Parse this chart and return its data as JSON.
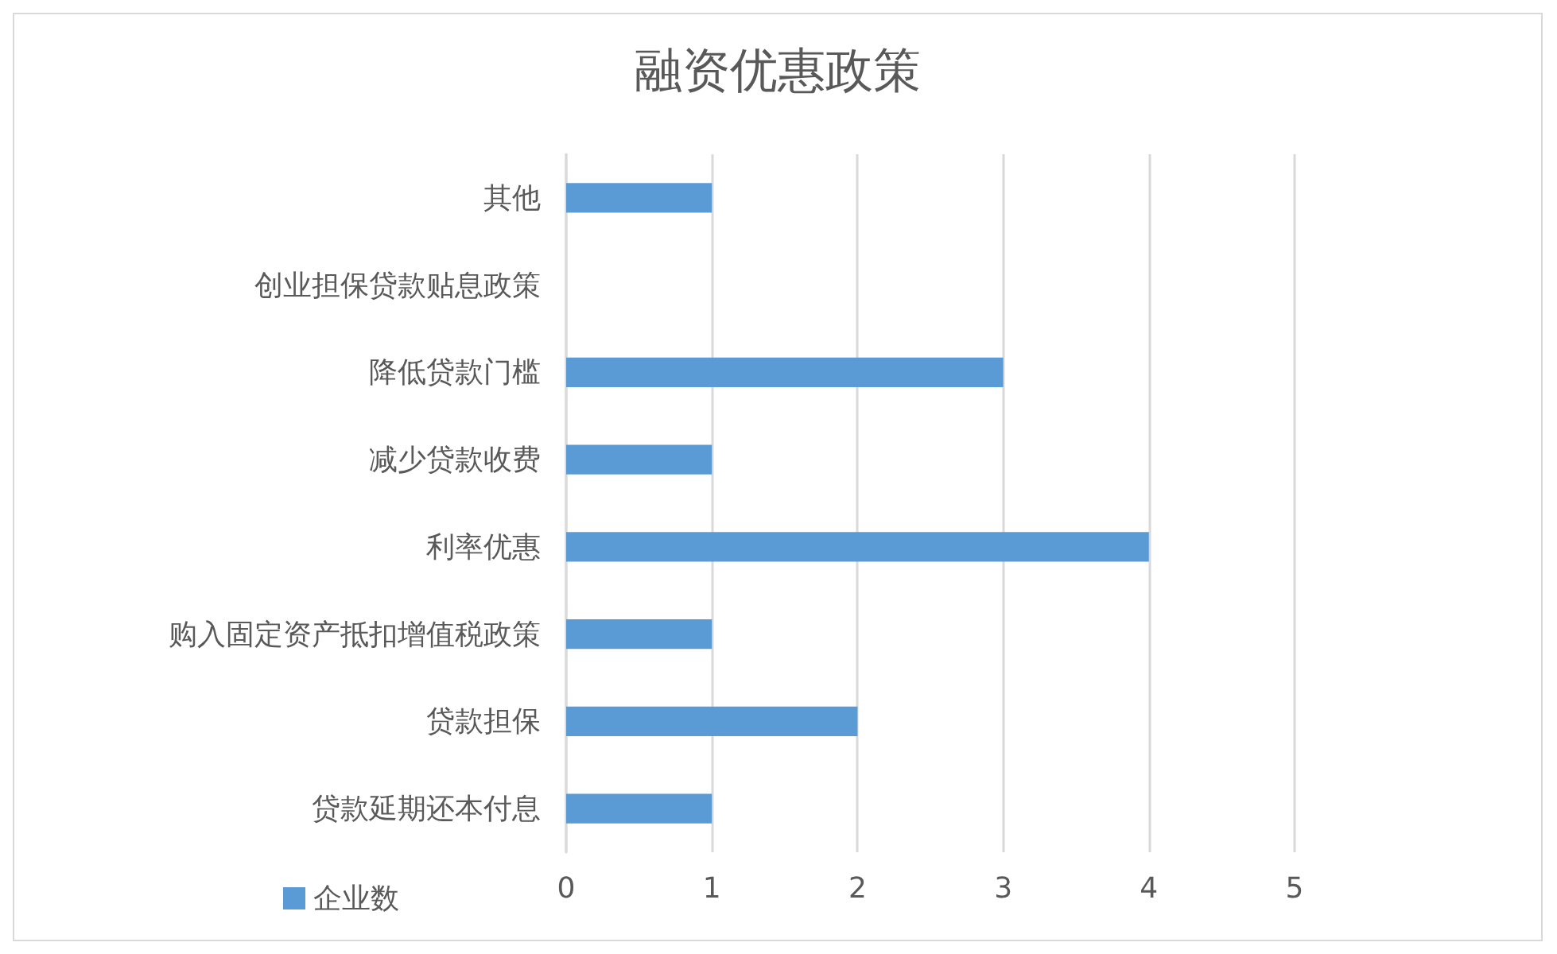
{
  "chart_data": {
    "type": "bar",
    "orientation": "horizontal",
    "title": "融资优惠政策",
    "categories": [
      "其他",
      "创业担保贷款贴息政策",
      "降低贷款门槛",
      "减少贷款收费",
      "利率优惠",
      "购入固定资产抵扣增值税政策",
      "贷款担保",
      "贷款延期还本付息"
    ],
    "series": [
      {
        "name": "企业数",
        "color": "#5b9bd5",
        "values": [
          1,
          0,
          3,
          1,
          4,
          1,
          2,
          1
        ]
      }
    ],
    "xlim": [
      0,
      5
    ],
    "xticks": [
      0,
      1,
      2,
      3,
      4,
      5
    ],
    "grid": "x",
    "legend": "bottom left"
  }
}
